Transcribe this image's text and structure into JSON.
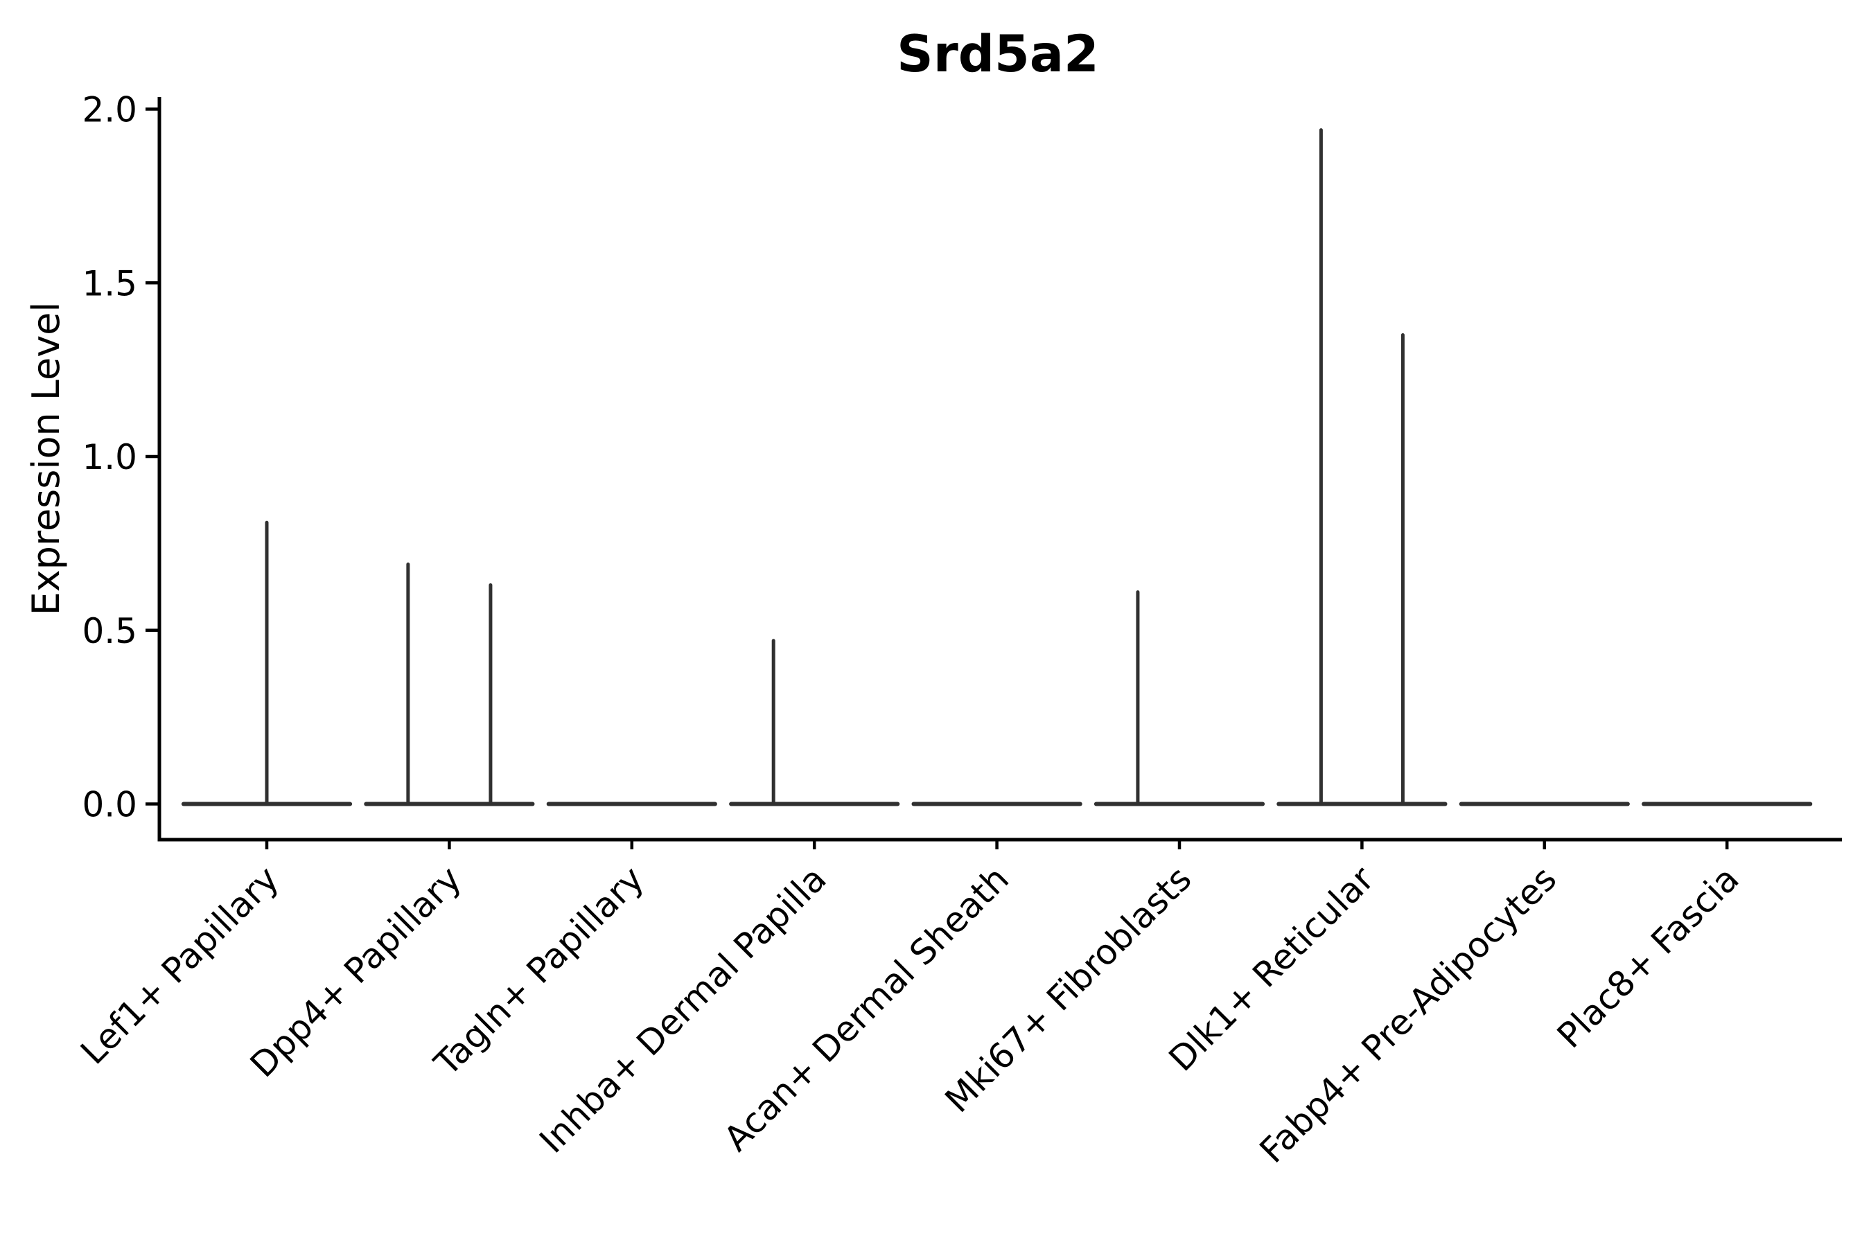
{
  "chart_data": {
    "type": "violin",
    "title": "Srd5a2",
    "ylabel": "Expression Level",
    "xlabel": "",
    "ytick_labels": [
      "0.0",
      "0.5",
      "1.0",
      "1.5",
      "2.0"
    ],
    "ytick_values": [
      0.0,
      0.5,
      1.0,
      1.5,
      2.0
    ],
    "ylim": [
      -0.1,
      2.04
    ],
    "grid": false,
    "legend": false,
    "x_tick_rotation_deg": 45,
    "categories": [
      "Lef1+ Papillary",
      "Dpp4+ Papillary",
      "Tagln+ Papillary",
      "Inhba+ Dermal Papilla",
      "Acan+ Dermal Sheath",
      "Mki67+ Fibroblasts",
      "Dlk1+ Reticular",
      "Fabp4+ Pre-Adipocytes",
      "Plac8+ Fascia"
    ],
    "violin_half_width": 0.456,
    "series": [
      {
        "name": "Lef1+ Papillary",
        "baseline_value": 0.0,
        "spikes": [
          {
            "offset": 0.0,
            "value": 0.81
          }
        ]
      },
      {
        "name": "Dpp4+ Papillary",
        "baseline_value": 0.0,
        "spikes": [
          {
            "offset": -0.226,
            "value": 0.69
          },
          {
            "offset": 0.226,
            "value": 0.63
          }
        ]
      },
      {
        "name": "Tagln+ Papillary",
        "baseline_value": 0.0,
        "spikes": []
      },
      {
        "name": "Inhba+ Dermal Papilla",
        "baseline_value": 0.0,
        "spikes": [
          {
            "offset": -0.224,
            "value": 0.47
          }
        ]
      },
      {
        "name": "Acan+ Dermal Sheath",
        "baseline_value": 0.0,
        "spikes": []
      },
      {
        "name": "Mki67+ Fibroblasts",
        "baseline_value": 0.0,
        "spikes": [
          {
            "offset": -0.228,
            "value": 0.61
          }
        ]
      },
      {
        "name": "Dlk1+ Reticular",
        "baseline_value": 0.0,
        "spikes": [
          {
            "offset": -0.224,
            "value": 1.94
          },
          {
            "offset": 0.224,
            "value": 1.35
          }
        ]
      },
      {
        "name": "Fabp4+ Pre-Adipocytes",
        "baseline_value": 0.0,
        "spikes": []
      },
      {
        "name": "Plac8+ Fascia",
        "baseline_value": 0.0,
        "spikes": []
      }
    ],
    "colors": {
      "violin_line": "#303030",
      "axis": "#000000",
      "text": "#000000",
      "background": "#ffffff"
    }
  }
}
